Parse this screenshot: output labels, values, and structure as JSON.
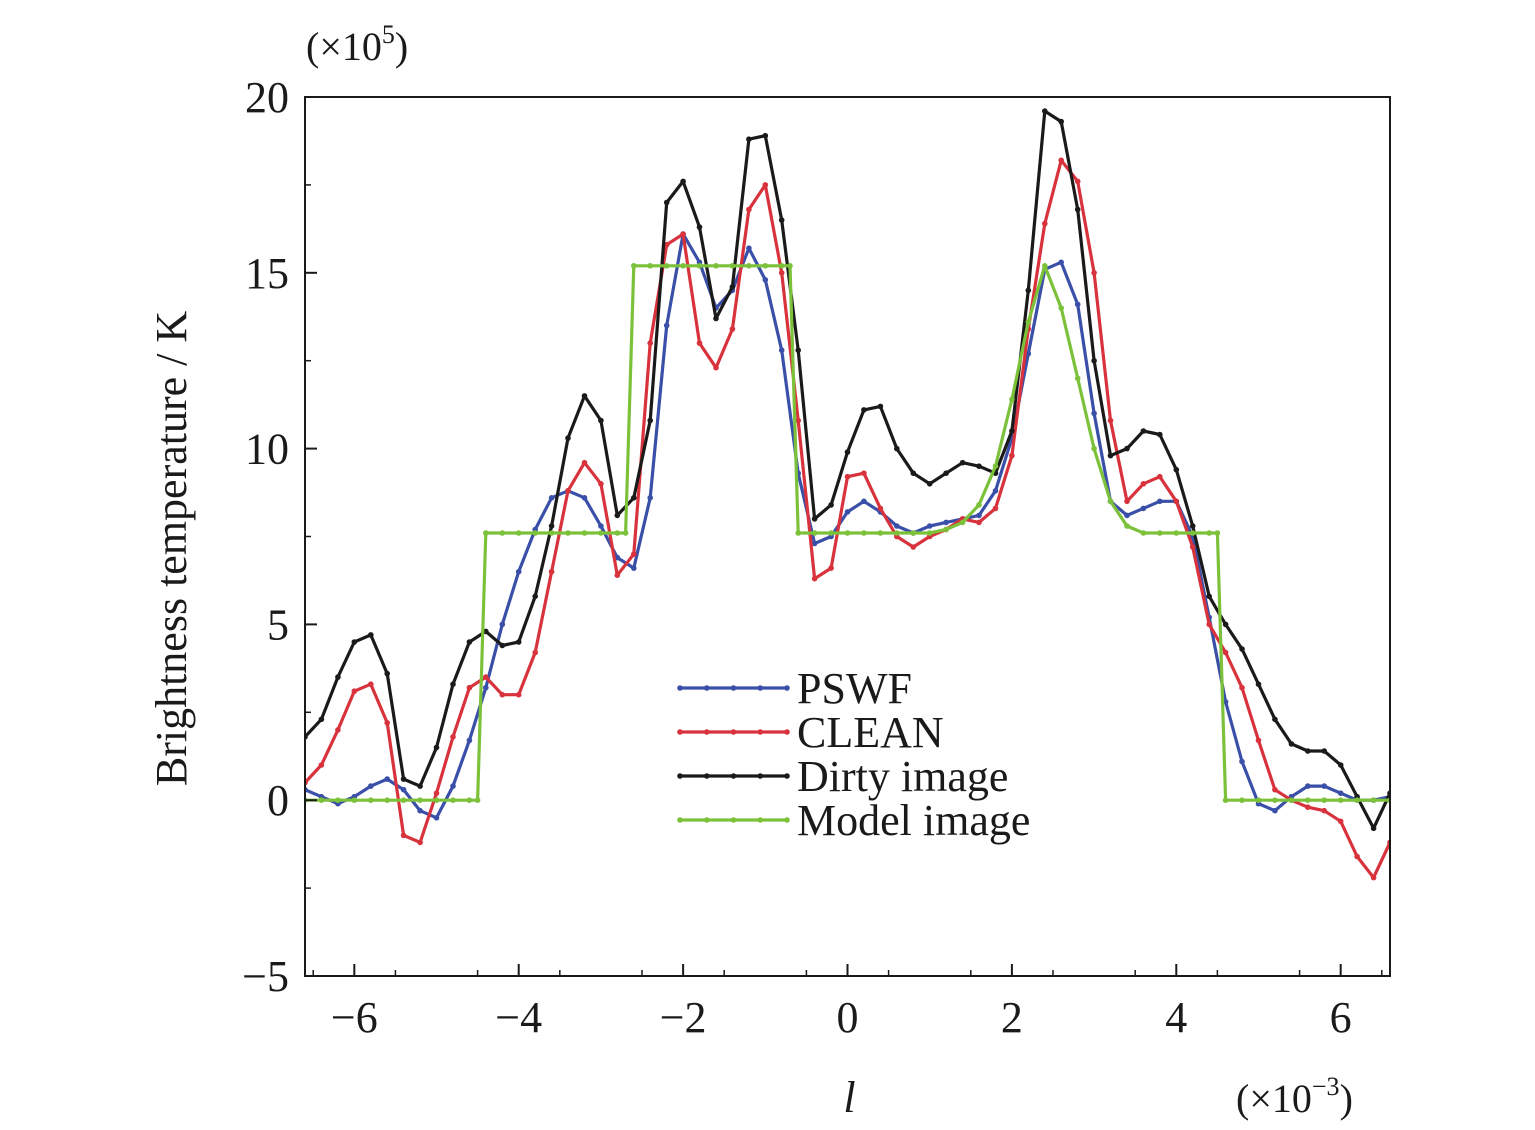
{
  "chart_data": {
    "type": "line",
    "xlabel": "l",
    "ylabel": "Brightness temperature / K",
    "x_multiplier": {
      "base": "(×10",
      "exp": "−3",
      "close": ")"
    },
    "y_multiplier": {
      "base": "(×10",
      "exp": "5",
      "close": ")"
    },
    "xlim": [
      -6.6,
      6.6
    ],
    "ylim": [
      -5,
      20
    ],
    "xticks": [
      -6,
      -4,
      -2,
      0,
      2,
      4,
      6
    ],
    "xtick_labels": [
      "−6",
      "−4",
      "−2",
      "0",
      "2",
      "4",
      "6"
    ],
    "yticks": [
      -5,
      0,
      5,
      10,
      15,
      20
    ],
    "ytick_labels": [
      "−5",
      "0",
      "5",
      "10",
      "15",
      "20"
    ],
    "grid": false,
    "legend_position": "center-bottom",
    "series": [
      {
        "name": "PSWF",
        "color": "#3a4fa8",
        "x": [
          -6.6,
          -6.4,
          -6.2,
          -6.0,
          -5.8,
          -5.6,
          -5.4,
          -5.2,
          -5.0,
          -4.8,
          -4.6,
          -4.4,
          -4.2,
          -4.0,
          -3.8,
          -3.6,
          -3.4,
          -3.2,
          -3.0,
          -2.8,
          -2.6,
          -2.4,
          -2.2,
          -2.0,
          -1.8,
          -1.6,
          -1.4,
          -1.2,
          -1.0,
          -0.8,
          -0.6,
          -0.4,
          -0.2,
          0.0,
          0.2,
          0.4,
          0.6,
          0.8,
          1.0,
          1.2,
          1.4,
          1.6,
          1.8,
          2.0,
          2.2,
          2.4,
          2.6,
          2.8,
          3.0,
          3.2,
          3.4,
          3.6,
          3.8,
          4.0,
          4.2,
          4.4,
          4.6,
          4.8,
          5.0,
          5.2,
          5.4,
          5.6,
          5.8,
          6.0,
          6.2,
          6.4,
          6.6
        ],
        "values": [
          0.3,
          0.1,
          -0.1,
          0.1,
          0.4,
          0.6,
          0.3,
          -0.3,
          -0.5,
          0.4,
          1.7,
          3.2,
          5.0,
          6.5,
          7.7,
          8.6,
          8.8,
          8.6,
          7.8,
          6.9,
          6.6,
          8.6,
          13.5,
          16.1,
          15.3,
          14.0,
          14.5,
          15.7,
          14.8,
          12.8,
          9.3,
          7.3,
          7.5,
          8.2,
          8.5,
          8.2,
          7.8,
          7.6,
          7.8,
          7.9,
          8.0,
          8.1,
          8.8,
          10.3,
          12.7,
          15.1,
          15.3,
          14.1,
          11.0,
          8.5,
          8.1,
          8.3,
          8.5,
          8.5,
          7.5,
          5.2,
          2.8,
          1.1,
          -0.1,
          -0.3,
          0.1,
          0.4,
          0.4,
          0.2,
          0.0,
          0.0,
          0.1
        ]
      },
      {
        "name": "CLEAN",
        "color": "#d8323c",
        "x": [
          -6.6,
          -6.4,
          -6.2,
          -6.0,
          -5.8,
          -5.6,
          -5.4,
          -5.2,
          -5.0,
          -4.8,
          -4.6,
          -4.4,
          -4.2,
          -4.0,
          -3.8,
          -3.6,
          -3.4,
          -3.2,
          -3.0,
          -2.8,
          -2.6,
          -2.4,
          -2.2,
          -2.0,
          -1.8,
          -1.6,
          -1.4,
          -1.2,
          -1.0,
          -0.8,
          -0.6,
          -0.4,
          -0.2,
          0.0,
          0.2,
          0.4,
          0.6,
          0.8,
          1.0,
          1.2,
          1.4,
          1.6,
          1.8,
          2.0,
          2.2,
          2.4,
          2.6,
          2.8,
          3.0,
          3.2,
          3.4,
          3.6,
          3.8,
          4.0,
          4.2,
          4.4,
          4.6,
          4.8,
          5.0,
          5.2,
          5.4,
          5.6,
          5.8,
          6.0,
          6.2,
          6.4,
          6.6
        ],
        "values": [
          0.5,
          1.0,
          2.0,
          3.1,
          3.3,
          2.2,
          -1.0,
          -1.2,
          0.2,
          1.8,
          3.2,
          3.5,
          3.0,
          3.0,
          4.2,
          6.5,
          8.8,
          9.6,
          9.0,
          6.4,
          7.0,
          13.0,
          15.8,
          16.1,
          13.0,
          12.3,
          13.4,
          16.8,
          17.5,
          15.0,
          10.8,
          6.3,
          6.6,
          9.2,
          9.3,
          8.3,
          7.5,
          7.2,
          7.5,
          7.7,
          8.0,
          7.9,
          8.3,
          9.8,
          13.4,
          16.4,
          18.2,
          17.6,
          15.0,
          10.8,
          8.5,
          9.0,
          9.2,
          8.5,
          7.2,
          5.0,
          4.2,
          3.2,
          1.7,
          0.3,
          0.0,
          -0.2,
          -0.3,
          -0.6,
          -1.6,
          -2.2,
          -1.2
        ]
      },
      {
        "name": "Dirty image",
        "color": "#1a1a1a",
        "x": [
          -6.6,
          -6.4,
          -6.2,
          -6.0,
          -5.8,
          -5.6,
          -5.4,
          -5.2,
          -5.0,
          -4.8,
          -4.6,
          -4.4,
          -4.2,
          -4.0,
          -3.8,
          -3.6,
          -3.4,
          -3.2,
          -3.0,
          -2.8,
          -2.6,
          -2.4,
          -2.2,
          -2.0,
          -1.8,
          -1.6,
          -1.4,
          -1.2,
          -1.0,
          -0.8,
          -0.6,
          -0.4,
          -0.2,
          0.0,
          0.2,
          0.4,
          0.6,
          0.8,
          1.0,
          1.2,
          1.4,
          1.6,
          1.8,
          2.0,
          2.2,
          2.4,
          2.6,
          2.8,
          3.0,
          3.2,
          3.4,
          3.6,
          3.8,
          4.0,
          4.2,
          4.4,
          4.6,
          4.8,
          5.0,
          5.2,
          5.4,
          5.6,
          5.8,
          6.0,
          6.2,
          6.4,
          6.6
        ],
        "values": [
          1.8,
          2.3,
          3.5,
          4.5,
          4.7,
          3.6,
          0.6,
          0.4,
          1.5,
          3.3,
          4.5,
          4.8,
          4.4,
          4.5,
          5.8,
          7.8,
          10.3,
          11.5,
          10.8,
          8.1,
          8.6,
          10.8,
          17.0,
          17.6,
          16.3,
          13.7,
          14.6,
          18.8,
          18.9,
          16.5,
          12.8,
          8.0,
          8.4,
          9.9,
          11.1,
          11.2,
          10.0,
          9.3,
          9.0,
          9.3,
          9.6,
          9.5,
          9.3,
          10.5,
          14.5,
          19.6,
          19.3,
          16.8,
          12.5,
          9.8,
          10.0,
          10.5,
          10.4,
          9.4,
          7.8,
          5.8,
          5.0,
          4.3,
          3.3,
          2.3,
          1.6,
          1.4,
          1.4,
          1.0,
          0.1,
          -0.8,
          0.2
        ]
      },
      {
        "name": "Model image",
        "color": "#7cc13a",
        "x": [
          -6.6,
          -6.4,
          -6.2,
          -6.0,
          -5.8,
          -5.6,
          -5.4,
          -5.2,
          -5.0,
          -4.8,
          -4.6,
          -4.5,
          -4.4,
          -4.2,
          -4.0,
          -3.8,
          -3.6,
          -3.4,
          -3.2,
          -3.0,
          -2.8,
          -2.7,
          -2.6,
          -2.4,
          -2.2,
          -2.0,
          -1.8,
          -1.6,
          -1.4,
          -1.2,
          -1.0,
          -0.8,
          -0.7,
          -0.6,
          -0.4,
          -0.2,
          0.0,
          0.2,
          0.4,
          0.6,
          0.8,
          1.0,
          1.2,
          1.4,
          1.6,
          1.8,
          2.0,
          2.2,
          2.4,
          2.6,
          2.8,
          3.0,
          3.2,
          3.4,
          3.6,
          3.8,
          4.0,
          4.2,
          4.4,
          4.5,
          4.6,
          4.8,
          5.0,
          5.2,
          5.4,
          5.6,
          5.8,
          6.0,
          6.2,
          6.4,
          6.6
        ],
        "values": [
          0.0,
          0.0,
          0.0,
          0.0,
          0.0,
          0.0,
          0.0,
          0.0,
          0.0,
          0.0,
          0.0,
          0.0,
          7.6,
          7.6,
          7.6,
          7.6,
          7.6,
          7.6,
          7.6,
          7.6,
          7.6,
          7.6,
          15.2,
          15.2,
          15.2,
          15.2,
          15.2,
          15.2,
          15.2,
          15.2,
          15.2,
          15.2,
          15.2,
          7.6,
          7.6,
          7.6,
          7.6,
          7.6,
          7.6,
          7.6,
          7.6,
          7.6,
          7.7,
          7.9,
          8.4,
          9.5,
          11.4,
          13.6,
          15.2,
          14.0,
          12.0,
          10.0,
          8.5,
          7.8,
          7.6,
          7.6,
          7.6,
          7.6,
          7.6,
          7.6,
          0.0,
          0.0,
          0.0,
          0.0,
          0.0,
          0.0,
          0.0,
          0.0,
          0.0,
          0.0,
          0.0
        ]
      }
    ]
  }
}
